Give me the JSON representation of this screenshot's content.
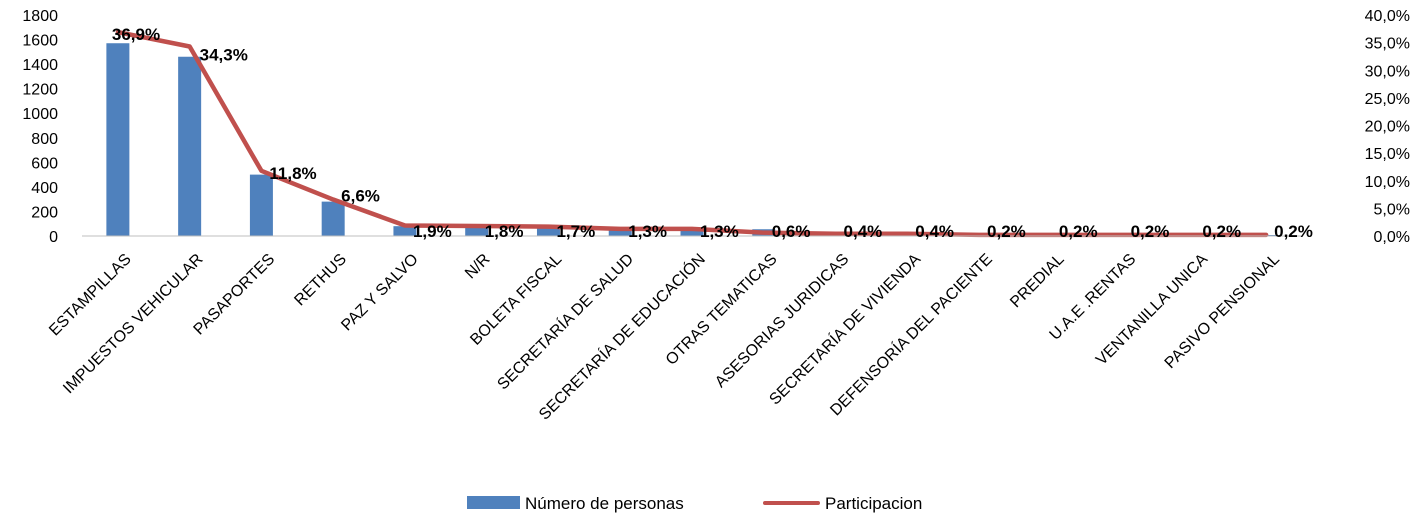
{
  "chart_data": {
    "type": "bar",
    "categories": [
      "ESTAMPILLAS",
      "IMPUESTOS VEHICULAR",
      "PASAPORTES",
      "RETHUS",
      "PAZ Y SALVO",
      "N/R",
      "BOLETA FISCAL",
      "SECRETARÍA DE SALUD",
      "SECRETARÍA DE EDUCACIÓN",
      "OTRAS TEMATICAS",
      "ASESORIAS JURIDICAS",
      "SECRETARÍA DE VIVIENDA",
      "DEFENSORÍA DEL PACIENTE",
      "PREDIAL",
      "U.A.E .RENTAS",
      "VENTANILLA UNICA",
      "PASIVO PENSIONAL"
    ],
    "series": [
      {
        "name": "Número de personas",
        "type": "bar",
        "axis": "left",
        "color": "#4F81BD",
        "values": [
          1570,
          1460,
          500,
          280,
          80,
          80,
          75,
          70,
          55,
          55,
          25,
          17,
          17,
          8,
          8,
          8,
          8
        ]
      },
      {
        "name": "Participacion",
        "type": "line",
        "axis": "right",
        "color": "#C0504D",
        "values": [
          36.9,
          34.3,
          11.8,
          6.6,
          1.9,
          1.8,
          1.7,
          1.3,
          1.3,
          0.6,
          0.4,
          0.4,
          0.2,
          0.2,
          0.2,
          0.2,
          0.2
        ],
        "labels": [
          "36,9%",
          "34,3%",
          "11,8%",
          "6,6%",
          "1,9%",
          "1,8%",
          "1,7%",
          "1,3%",
          "1,3%",
          "0,6%",
          "0,4%",
          "0,4%",
          "0,2%",
          "0,2%",
          "0,2%",
          "0,2%",
          "0,2%"
        ]
      }
    ],
    "left_axis": {
      "ylim": [
        0,
        1800
      ],
      "ticks": [
        0,
        200,
        400,
        600,
        800,
        1000,
        1200,
        1400,
        1600,
        1800
      ],
      "tick_labels": [
        "0",
        "200",
        "400",
        "600",
        "800",
        "1000",
        "1200",
        "1400",
        "1600",
        "1800"
      ]
    },
    "right_axis": {
      "ylim": [
        0,
        40
      ],
      "ticks": [
        0,
        5,
        10,
        15,
        20,
        25,
        30,
        35,
        40
      ],
      "tick_labels": [
        "0,0%",
        "5,0%",
        "10,0%",
        "15,0%",
        "20,0%",
        "25,0%",
        "30,0%",
        "35,0%",
        "40,0%"
      ]
    },
    "grid": false,
    "legend": {
      "position": "bottom",
      "entries": [
        "Número de personas",
        "Participacion"
      ]
    }
  }
}
